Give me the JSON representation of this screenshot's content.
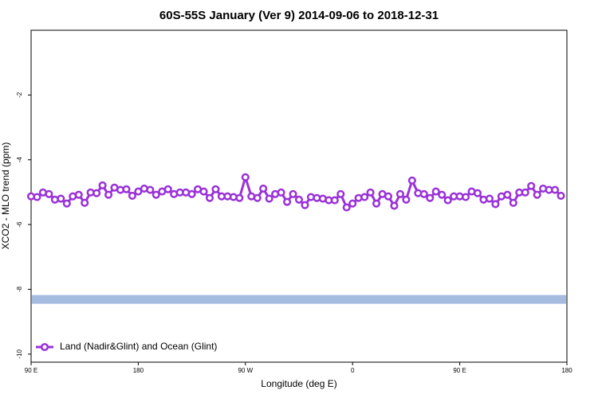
{
  "chart_data": {
    "type": "line",
    "title": "60S-55S January (Ver 9)   2014-09-06 to 2018-12-31",
    "x_label": "Longitude (deg E)",
    "y_label": "XCO2 - MLO trend (ppm)",
    "xlim": [
      90,
      540
    ],
    "ylim": [
      -10.25,
      0
    ],
    "xticks": [
      {
        "value": 90,
        "label": "90 E"
      },
      180,
      {
        "value": 270,
        "label": "90 W"
      },
      {
        "value": 360,
        "label": "0"
      },
      {
        "value": 450,
        "label": "90 E"
      },
      {
        "value": 540,
        "label": "180"
      }
    ],
    "yticks": [
      -10,
      -8,
      -6,
      -4,
      -2
    ],
    "legend": "bottom-left",
    "band": {
      "value": -8.31,
      "color": "#a5bbe0"
    },
    "x": [
      90,
      95,
      100,
      105,
      110,
      115,
      120,
      125,
      130,
      135,
      140,
      145,
      150,
      155,
      160,
      165,
      170,
      175,
      180,
      185,
      190,
      195,
      200,
      205,
      210,
      215,
      220,
      225,
      230,
      235,
      240,
      245,
      250,
      255,
      260,
      265,
      270,
      275,
      280,
      285,
      290,
      295,
      300,
      305,
      310,
      315,
      320,
      325,
      330,
      335,
      340,
      345,
      350,
      355,
      360,
      365,
      370,
      375,
      380,
      385,
      390,
      395,
      400,
      405,
      410,
      415,
      420,
      425,
      430,
      435,
      440,
      445,
      450,
      455,
      460,
      465,
      470,
      475,
      480,
      485,
      490,
      495,
      500,
      505,
      510,
      515,
      520,
      525,
      530,
      535
    ],
    "series": [
      {
        "name": "Land (Nadir&Glint) and Ocean (Glint)",
        "color": "#9a32d8",
        "values": [
          -5.13,
          -5.15,
          -5.01,
          -5.06,
          -5.23,
          -5.2,
          -5.35,
          -5.13,
          -5.08,
          -5.33,
          -5.01,
          -5.03,
          -4.79,
          -5.08,
          -4.86,
          -4.93,
          -4.91,
          -5.11,
          -4.98,
          -4.89,
          -4.93,
          -5.08,
          -4.98,
          -4.91,
          -5.06,
          -5.01,
          -5.01,
          -5.06,
          -4.91,
          -4.98,
          -5.18,
          -4.91,
          -5.13,
          -5.13,
          -5.15,
          -5.18,
          -4.54,
          -5.13,
          -5.18,
          -4.89,
          -5.2,
          -5.06,
          -5.01,
          -5.3,
          -5.06,
          -5.23,
          -5.4,
          -5.15,
          -5.18,
          -5.2,
          -5.25,
          -5.25,
          -5.06,
          -5.47,
          -5.35,
          -5.18,
          -5.15,
          -5.01,
          -5.35,
          -5.06,
          -5.13,
          -5.42,
          -5.06,
          -5.23,
          -4.64,
          -5.03,
          -5.06,
          -5.18,
          -4.98,
          -5.08,
          -5.25,
          -5.13,
          -5.13,
          -5.15,
          -4.98,
          -5.03,
          -5.23,
          -5.2,
          -5.37,
          -5.13,
          -5.08,
          -5.33,
          -5.01,
          -5.01,
          -4.81,
          -5.08,
          -4.89,
          -4.93,
          -4.93,
          -5.11
        ]
      }
    ]
  }
}
